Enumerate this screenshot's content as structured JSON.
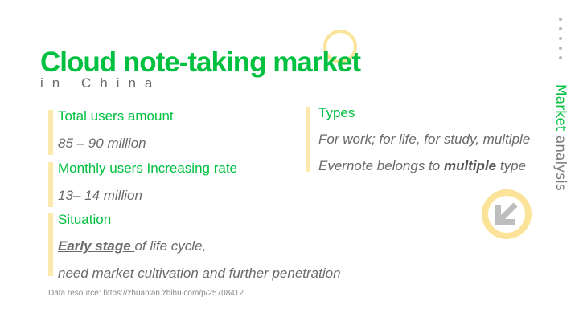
{
  "title": "Cloud note-taking market",
  "subtitle": "in China",
  "side_label": {
    "part1": "Market",
    "part2": " analysis"
  },
  "left": {
    "total_users": {
      "heading": "Total users amount",
      "value": "85 – 90",
      "unit": " million"
    },
    "monthly": {
      "heading": "Monthly users Increasing rate",
      "value": "13– 14",
      "unit": " million"
    },
    "situation": {
      "heading": "Situation",
      "line1_emph": "Early stage ",
      "line1_rest": "of life cycle,",
      "line2": "need market cultivation and further penetration"
    }
  },
  "right": {
    "types": {
      "heading": "Types",
      "line1": "For work; for life, for study, multiple",
      "line2_pre": "Evernote belongs to ",
      "line2_bold": "multiple",
      "line2_post": " type"
    }
  },
  "source": "Data resource: https://zhuanlan.zhihu.com/p/25708412",
  "icons": [
    "arrow-down-left-icon"
  ],
  "colors": {
    "accent_green": "#00c040",
    "accent_yellow": "#fbe39a",
    "text_gray": "#6a6a6a"
  }
}
